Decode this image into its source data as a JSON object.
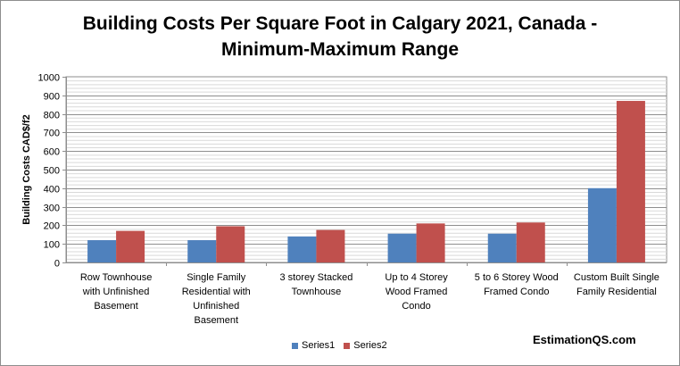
{
  "chart_data": {
    "type": "bar",
    "title_line1": "Building Costs Per Square Foot in Calgary 2021, Canada -",
    "title_line2": "Minimum-Maximum Range",
    "ylabel": "Building Costs  CAD$/f2",
    "xlabel": "",
    "ylim": [
      0,
      1000
    ],
    "ytick_step": 100,
    "yticks": [
      "0",
      "100",
      "200",
      "300",
      "400",
      "500",
      "600",
      "700",
      "800",
      "900",
      "1000"
    ],
    "grid": true,
    "legend_position": "bottom",
    "categories": [
      "Row Townhouse with Unfinished Basement",
      "Single Family Residential with Unfinished Basement",
      "3 storey Stacked Townhouse",
      "Up to 4 Storey Wood Framed Condo",
      "5 to 6 Storey Wood Framed Condo",
      "Custom Built Single Family Residential"
    ],
    "category_lines": [
      [
        "Row Townhouse",
        "with Unfinished",
        "Basement"
      ],
      [
        "Single Family",
        "Residential with",
        "Unfinished",
        "Basement"
      ],
      [
        "3 storey Stacked",
        "Townhouse"
      ],
      [
        "Up to 4 Storey",
        "Wood Framed",
        "Condo"
      ],
      [
        "5 to 6 Storey Wood",
        "Framed Condo"
      ],
      [
        "Custom Built Single",
        "Family Residential"
      ]
    ],
    "series": [
      {
        "name": "Series1",
        "color": "#4f81bd",
        "values": [
          120,
          120,
          140,
          155,
          155,
          400
        ]
      },
      {
        "name": "Series2",
        "color": "#c0504d",
        "values": [
          170,
          195,
          175,
          210,
          215,
          870
        ]
      }
    ]
  },
  "legend": {
    "series1_label": "Series1",
    "series2_label": "Series2"
  },
  "watermark": "EstimationQS.com"
}
